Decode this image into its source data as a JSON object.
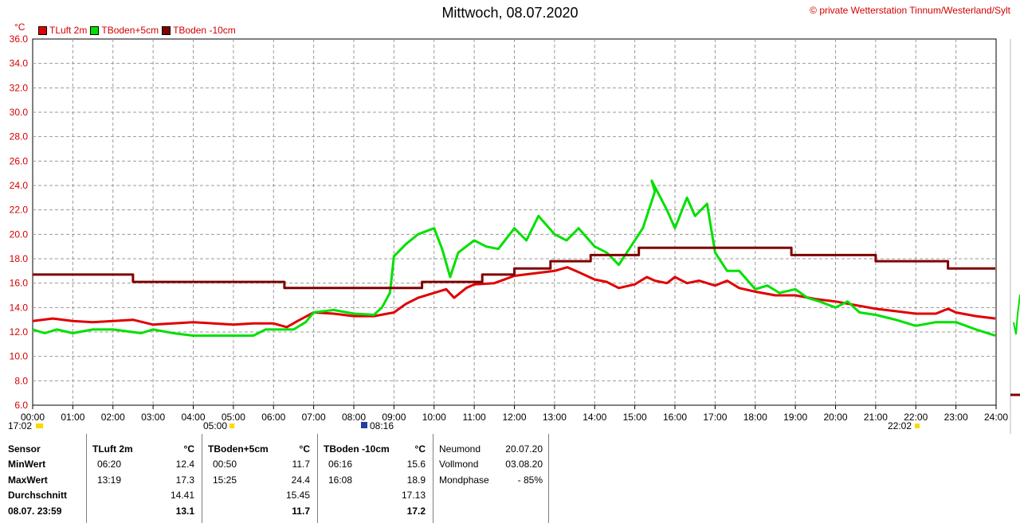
{
  "title": "Mittwoch, 08.07.2020",
  "copyright": "© private Wetterstation Tinnum/Westerland/Sylt",
  "unit": "°C",
  "legend": [
    {
      "name": "TLuft 2m",
      "color": "#e00000"
    },
    {
      "name": "TBoden+5cm",
      "color": "#00e000"
    },
    {
      "name": "TBoden -10cm",
      "color": "#800000"
    }
  ],
  "markers": {
    "left": "17:02",
    "morning": "05:00",
    "sun": "08:16",
    "evening": "22:02"
  },
  "chart_data": {
    "type": "line",
    "xlabel": "",
    "ylabel": "°C",
    "xlim": [
      0,
      24
    ],
    "ylim": [
      6.0,
      36.0
    ],
    "x_ticks": [
      "00:00",
      "01:00",
      "02:00",
      "03:00",
      "04:00",
      "05:00",
      "06:00",
      "07:00",
      "08:00",
      "09:00",
      "10:00",
      "11:00",
      "12:00",
      "13:00",
      "14:00",
      "15:00",
      "16:00",
      "17:00",
      "18:00",
      "19:00",
      "20:00",
      "21:00",
      "22:00",
      "23:00",
      "24:00"
    ],
    "y_ticks": [
      "6.0",
      "8.0",
      "10.0",
      "12.0",
      "14.0",
      "16.0",
      "18.0",
      "20.0",
      "22.0",
      "24.0",
      "26.0",
      "28.0",
      "30.0",
      "32.0",
      "34.0",
      "36.0"
    ],
    "series": [
      {
        "name": "TLuft 2m",
        "color": "#e00000",
        "points": [
          [
            0,
            12.9
          ],
          [
            0.5,
            13.1
          ],
          [
            1,
            12.9
          ],
          [
            1.5,
            12.8
          ],
          [
            2,
            12.9
          ],
          [
            2.5,
            13.0
          ],
          [
            3,
            12.6
          ],
          [
            3.5,
            12.7
          ],
          [
            4,
            12.8
          ],
          [
            4.5,
            12.7
          ],
          [
            5,
            12.6
          ],
          [
            5.5,
            12.7
          ],
          [
            6,
            12.7
          ],
          [
            6.33,
            12.4
          ],
          [
            6.6,
            12.9
          ],
          [
            7,
            13.6
          ],
          [
            7.5,
            13.5
          ],
          [
            8,
            13.3
          ],
          [
            8.5,
            13.3
          ],
          [
            9,
            13.6
          ],
          [
            9.3,
            14.3
          ],
          [
            9.6,
            14.8
          ],
          [
            10,
            15.2
          ],
          [
            10.3,
            15.5
          ],
          [
            10.5,
            14.8
          ],
          [
            10.8,
            15.6
          ],
          [
            11,
            15.9
          ],
          [
            11.5,
            16.0
          ],
          [
            12,
            16.6
          ],
          [
            12.5,
            16.8
          ],
          [
            13,
            17.0
          ],
          [
            13.32,
            17.3
          ],
          [
            13.6,
            16.9
          ],
          [
            14,
            16.3
          ],
          [
            14.3,
            16.1
          ],
          [
            14.6,
            15.6
          ],
          [
            15,
            15.9
          ],
          [
            15.3,
            16.5
          ],
          [
            15.5,
            16.2
          ],
          [
            15.8,
            16.0
          ],
          [
            16,
            16.5
          ],
          [
            16.3,
            16.0
          ],
          [
            16.6,
            16.2
          ],
          [
            17,
            15.8
          ],
          [
            17.3,
            16.2
          ],
          [
            17.6,
            15.6
          ],
          [
            18,
            15.3
          ],
          [
            18.5,
            15.0
          ],
          [
            19,
            15.0
          ],
          [
            19.5,
            14.7
          ],
          [
            20,
            14.5
          ],
          [
            20.5,
            14.2
          ],
          [
            21,
            13.9
          ],
          [
            21.5,
            13.7
          ],
          [
            22,
            13.5
          ],
          [
            22.5,
            13.5
          ],
          [
            22.8,
            13.9
          ],
          [
            23,
            13.6
          ],
          [
            23.5,
            13.3
          ],
          [
            23.98,
            13.1
          ]
        ]
      },
      {
        "name": "TBoden+5cm",
        "color": "#00e000",
        "points": [
          [
            0,
            12.2
          ],
          [
            0.3,
            11.9
          ],
          [
            0.6,
            12.2
          ],
          [
            1,
            11.9
          ],
          [
            1.5,
            12.2
          ],
          [
            2,
            12.2
          ],
          [
            2.7,
            11.9
          ],
          [
            3,
            12.2
          ],
          [
            3.5,
            11.9
          ],
          [
            4,
            11.7
          ],
          [
            4.5,
            11.7
          ],
          [
            5,
            11.7
          ],
          [
            5.5,
            11.7
          ],
          [
            5.8,
            12.2
          ],
          [
            6,
            12.2
          ],
          [
            6.5,
            12.2
          ],
          [
            6.8,
            12.8
          ],
          [
            7,
            13.6
          ],
          [
            7.5,
            13.8
          ],
          [
            8,
            13.5
          ],
          [
            8.5,
            13.4
          ],
          [
            8.7,
            14.0
          ],
          [
            8.9,
            15.2
          ],
          [
            9,
            18.2
          ],
          [
            9.3,
            19.2
          ],
          [
            9.6,
            20.0
          ],
          [
            10,
            20.5
          ],
          [
            10.2,
            18.8
          ],
          [
            10.4,
            16.5
          ],
          [
            10.6,
            18.5
          ],
          [
            11,
            19.5
          ],
          [
            11.3,
            19.0
          ],
          [
            11.6,
            18.8
          ],
          [
            12,
            20.5
          ],
          [
            12.3,
            19.5
          ],
          [
            12.6,
            21.5
          ],
          [
            13,
            20.0
          ],
          [
            13.3,
            19.5
          ],
          [
            13.6,
            20.5
          ],
          [
            14,
            19.0
          ],
          [
            14.3,
            18.5
          ],
          [
            14.6,
            17.5
          ],
          [
            14.9,
            19.0
          ],
          [
            15.2,
            20.5
          ],
          [
            15.5,
            23.5
          ],
          [
            15.42,
            24.4
          ],
          [
            15.8,
            22.0
          ],
          [
            16,
            20.5
          ],
          [
            16.3,
            23.0
          ],
          [
            16.5,
            21.5
          ],
          [
            16.8,
            22.5
          ],
          [
            17,
            18.5
          ],
          [
            17.3,
            17.0
          ],
          [
            17.6,
            17.0
          ],
          [
            18,
            15.5
          ],
          [
            18.3,
            15.8
          ],
          [
            18.6,
            15.2
          ],
          [
            19,
            15.5
          ],
          [
            19.3,
            14.8
          ],
          [
            19.6,
            14.5
          ],
          [
            20,
            14.0
          ],
          [
            20.3,
            14.5
          ],
          [
            20.6,
            13.6
          ],
          [
            21,
            13.4
          ],
          [
            21.5,
            13.0
          ],
          [
            22,
            12.5
          ],
          [
            22.5,
            12.8
          ],
          [
            23,
            12.8
          ],
          [
            23.5,
            12.2
          ],
          [
            23.98,
            11.7
          ]
        ]
      },
      {
        "name": "TBoden -10cm",
        "color": "#800000",
        "points": [
          [
            0,
            16.7
          ],
          [
            2.5,
            16.7
          ],
          [
            2.5,
            16.1
          ],
          [
            6.27,
            16.1
          ],
          [
            6.27,
            15.6
          ],
          [
            9.7,
            15.6
          ],
          [
            9.7,
            16.1
          ],
          [
            11.2,
            16.1
          ],
          [
            11.2,
            16.7
          ],
          [
            12,
            16.7
          ],
          [
            12,
            17.2
          ],
          [
            12.9,
            17.2
          ],
          [
            12.9,
            17.8
          ],
          [
            13.9,
            17.8
          ],
          [
            13.9,
            18.3
          ],
          [
            15.1,
            18.3
          ],
          [
            15.1,
            18.9
          ],
          [
            18.9,
            18.9
          ],
          [
            18.9,
            18.3
          ],
          [
            21.0,
            18.3
          ],
          [
            21.0,
            17.8
          ],
          [
            22.8,
            17.8
          ],
          [
            22.8,
            17.2
          ],
          [
            23.98,
            17.2
          ]
        ]
      }
    ]
  },
  "stats": {
    "headers": {
      "sensor": "Sensor",
      "tluft": "TLuft 2m",
      "tboden5": "TBoden+5cm",
      "tboden10": "TBoden -10cm",
      "unit": "°C"
    },
    "rows": {
      "min": "MinWert",
      "max": "MaxWert",
      "avg": "Durchschnitt",
      "current": "08.07. 23:59"
    },
    "tluft": {
      "min_time": "06:20",
      "min": "12.4",
      "max_time": "13:19",
      "max": "17.3",
      "avg": "14.41",
      "current": "13.1"
    },
    "tboden5": {
      "min_time": "00:50",
      "min": "11.7",
      "max_time": "15:25",
      "max": "24.4",
      "avg": "15.45",
      "current": "11.7"
    },
    "tboden10": {
      "min_time": "06:16",
      "min": "15.6",
      "max_time": "16:08",
      "max": "18.9",
      "avg": "17.13",
      "current": "17.2"
    },
    "moon": {
      "new_label": "Neumond",
      "new_date": "20.07.20",
      "full_label": "Vollmond",
      "full_date": "03.08.20",
      "phase_label": "Mondphase",
      "phase_value": "- 85%"
    }
  }
}
